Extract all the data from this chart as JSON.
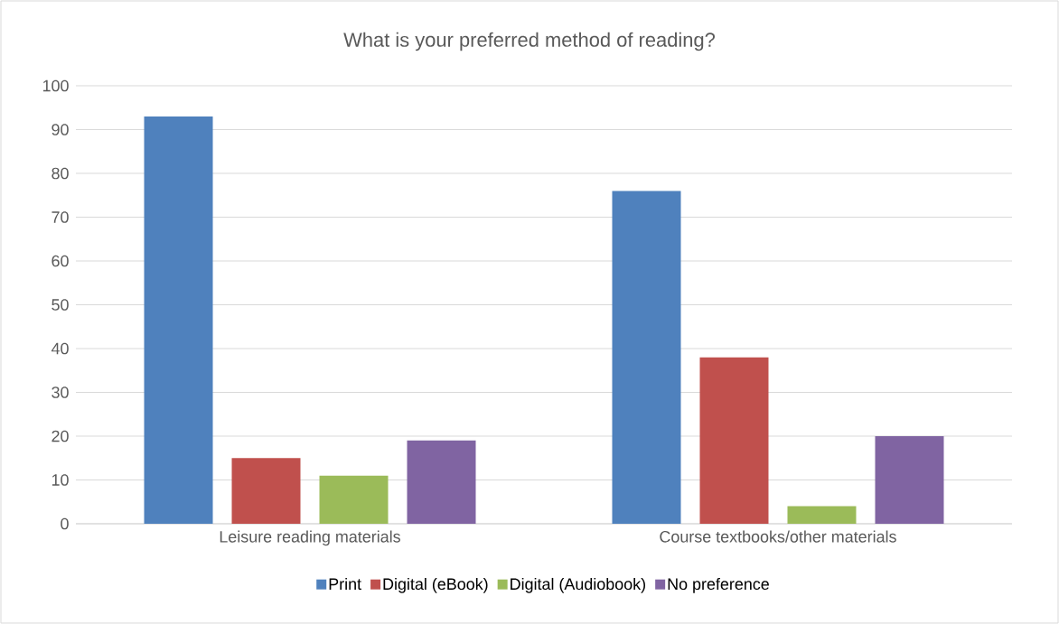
{
  "chart_data": {
    "type": "bar",
    "title": "What is your preferred method of reading?",
    "categories": [
      "Leisure reading materials",
      "Course textbooks/other materials"
    ],
    "series": [
      {
        "name": "Print",
        "color": "#4f81bd",
        "values": [
          93,
          76
        ]
      },
      {
        "name": "Digital (eBook)",
        "color": "#c0504d",
        "values": [
          15,
          38
        ]
      },
      {
        "name": "Digital (Audiobook)",
        "color": "#9bbb59",
        "values": [
          11,
          4
        ]
      },
      {
        "name": "No preference",
        "color": "#8064a2",
        "values": [
          19,
          20
        ]
      }
    ],
    "ylim": [
      0,
      100
    ],
    "yticks": [
      0,
      10,
      20,
      30,
      40,
      50,
      60,
      70,
      80,
      90,
      100
    ],
    "grid": "y",
    "legend": "bottom"
  }
}
